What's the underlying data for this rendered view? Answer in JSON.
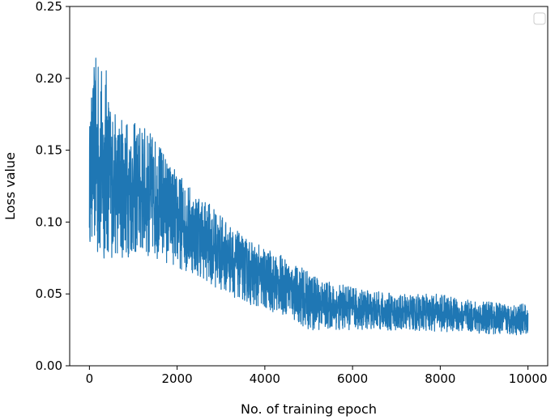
{
  "chart_data": {
    "type": "line",
    "title": "",
    "xlabel": "No. of training epoch",
    "ylabel": "Loss value",
    "xlim": [
      -450,
      10450
    ],
    "ylim": [
      0.0,
      0.25
    ],
    "x_ticks": [
      0,
      2000,
      4000,
      6000,
      8000,
      10000
    ],
    "x_tick_labels": [
      "0",
      "2000",
      "4000",
      "6000",
      "8000",
      "10000"
    ],
    "y_ticks": [
      0.0,
      0.05,
      0.1,
      0.15,
      0.2,
      0.25
    ],
    "y_tick_labels": [
      "0.00",
      "0.05",
      "0.10",
      "0.15",
      "0.20",
      "0.25"
    ],
    "grid": false,
    "legend": {
      "placement": "top-right",
      "entries": []
    },
    "series": [
      {
        "color": "#1f77b4",
        "x": [
          0,
          100,
          200,
          300,
          400,
          500,
          600,
          800,
          1000,
          1200,
          1500,
          2000,
          2500,
          3000,
          3500,
          4000,
          4500,
          5000,
          5500,
          6000,
          6500,
          7000,
          7500,
          8000,
          8500,
          9000,
          9500,
          10000
        ],
        "upper": [
          0.17,
          0.21,
          0.22,
          0.205,
          0.21,
          0.18,
          0.175,
          0.175,
          0.17,
          0.168,
          0.16,
          0.135,
          0.12,
          0.105,
          0.09,
          0.082,
          0.075,
          0.065,
          0.058,
          0.055,
          0.052,
          0.05,
          0.05,
          0.05,
          0.046,
          0.045,
          0.043,
          0.043
        ],
        "lower": [
          0.085,
          0.085,
          0.065,
          0.07,
          0.075,
          0.075,
          0.075,
          0.075,
          0.075,
          0.075,
          0.075,
          0.068,
          0.062,
          0.052,
          0.045,
          0.038,
          0.035,
          0.025,
          0.025,
          0.025,
          0.025,
          0.024,
          0.024,
          0.024,
          0.023,
          0.022,
          0.022,
          0.021
        ]
      }
    ]
  }
}
